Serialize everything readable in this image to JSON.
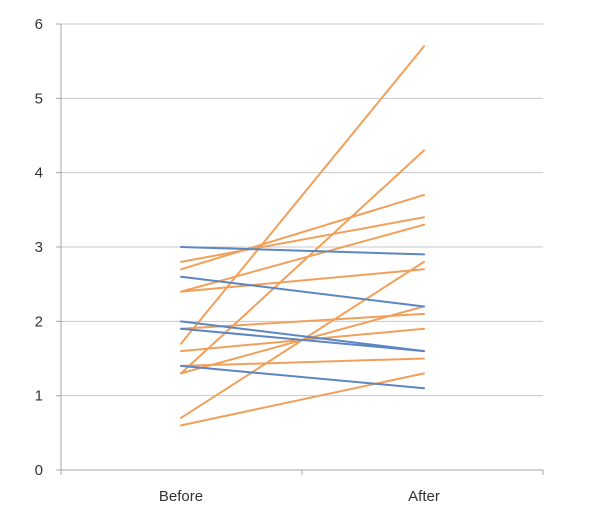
{
  "chart_data": {
    "type": "line",
    "title": "",
    "xlabel": "",
    "ylabel": "",
    "categories": [
      "Before",
      "After"
    ],
    "ylim": [
      0,
      6
    ],
    "yticks": [
      0,
      1,
      2,
      3,
      4,
      5,
      6
    ],
    "grid": true,
    "legend": "none",
    "colors": {
      "increase": "#f0a05a",
      "decrease": "#5b86c3",
      "grid": "#c8c8c8",
      "axis": "#a6a6a6"
    },
    "series": [
      {
        "values": [
          0.6,
          1.3
        ],
        "group": "increase"
      },
      {
        "values": [
          0.7,
          2.8
        ],
        "group": "increase"
      },
      {
        "values": [
          1.3,
          4.3
        ],
        "group": "increase"
      },
      {
        "values": [
          1.3,
          2.2
        ],
        "group": "increase"
      },
      {
        "values": [
          1.4,
          1.5
        ],
        "group": "increase"
      },
      {
        "values": [
          1.6,
          1.9
        ],
        "group": "increase"
      },
      {
        "values": [
          1.7,
          5.7
        ],
        "group": "increase"
      },
      {
        "values": [
          1.9,
          2.1
        ],
        "group": "increase"
      },
      {
        "values": [
          2.0,
          1.6
        ],
        "group": "decrease"
      },
      {
        "values": [
          1.9,
          1.6
        ],
        "group": "decrease"
      },
      {
        "values": [
          1.4,
          1.1
        ],
        "group": "decrease"
      },
      {
        "values": [
          2.6,
          2.2
        ],
        "group": "decrease"
      },
      {
        "values": [
          3.0,
          2.9
        ],
        "group": "decrease"
      },
      {
        "values": [
          2.4,
          2.7
        ],
        "group": "increase"
      },
      {
        "values": [
          2.4,
          3.3
        ],
        "group": "increase"
      },
      {
        "values": [
          2.7,
          3.7
        ],
        "group": "increase"
      },
      {
        "values": [
          2.8,
          3.4
        ],
        "group": "increase"
      }
    ]
  }
}
